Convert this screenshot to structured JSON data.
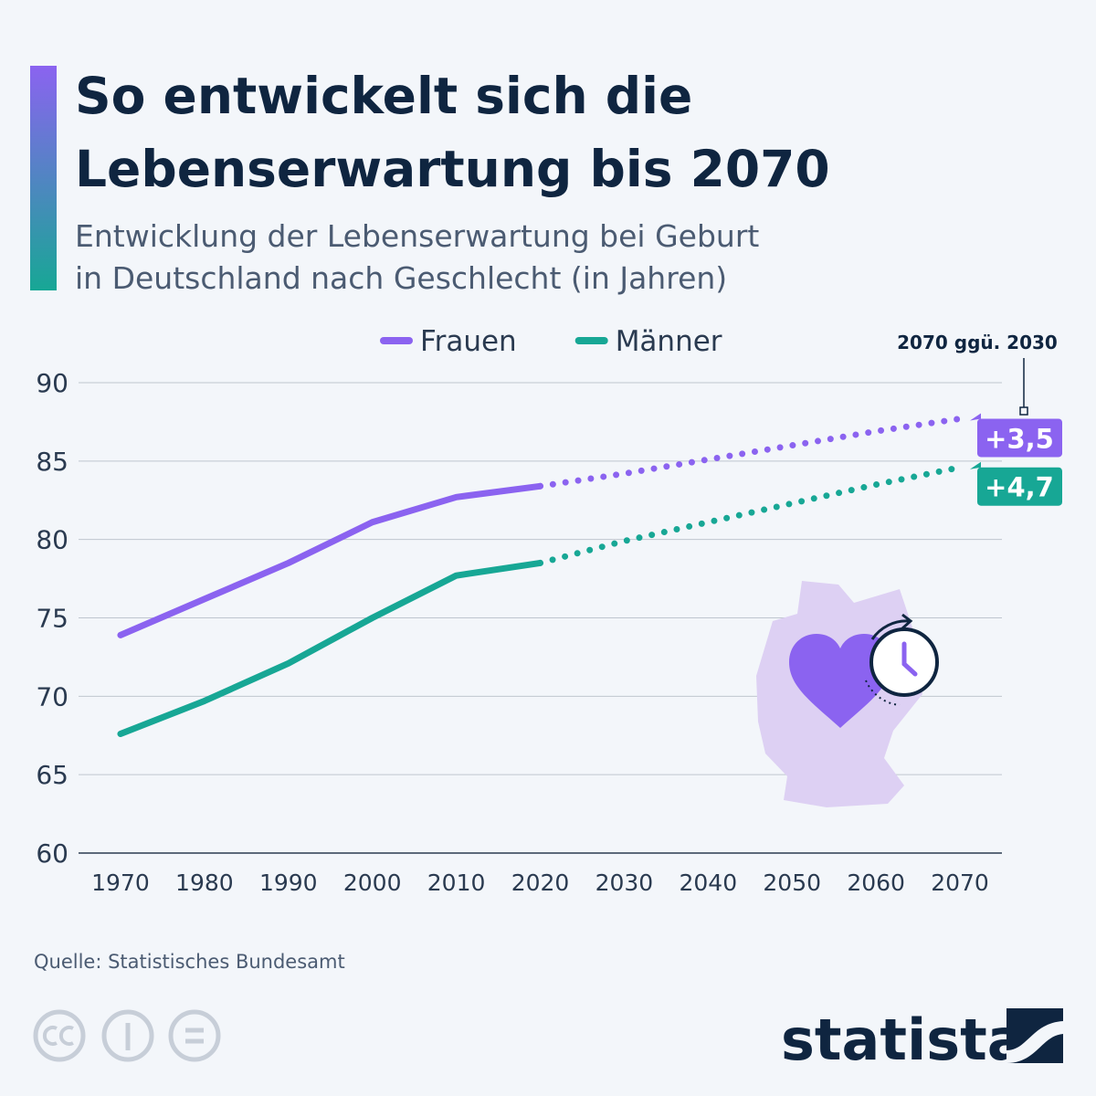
{
  "chart_data": {
    "type": "line",
    "title": [
      "So entwickelt sich die",
      "Lebenserwartung bis 2070"
    ],
    "subtitle": [
      "Entwicklung der Lebenserwartung bei Geburt",
      "in Deutschland nach Geschlecht (in Jahren)"
    ],
    "x": [
      1970,
      1980,
      1990,
      2000,
      2010,
      2020,
      2030,
      2040,
      2050,
      2060,
      2070
    ],
    "projection_start": 2020,
    "series": [
      {
        "name": "Frauen",
        "color": "#8b63f0",
        "values": [
          73.9,
          76.2,
          78.5,
          81.1,
          82.7,
          83.4,
          84.2,
          85.1,
          86.0,
          86.9,
          87.7
        ],
        "change": {
          "value": 3.5,
          "label": "+3,5"
        }
      },
      {
        "name": "Männer",
        "color": "#17a795",
        "values": [
          67.6,
          69.7,
          72.1,
          75.0,
          77.7,
          78.5,
          79.9,
          81.1,
          82.3,
          83.5,
          84.6
        ],
        "change": {
          "value": 4.7,
          "label": "+4,7"
        }
      }
    ],
    "change_title": "2070 ggü. 2030",
    "xlim": [
      1965,
      2075
    ],
    "xticks": [
      1970,
      1980,
      1990,
      2000,
      2010,
      2020,
      2030,
      2040,
      2050,
      2060,
      2070
    ],
    "ylim": [
      60,
      90
    ],
    "yticks": [
      60,
      65,
      70,
      75,
      80,
      85,
      90
    ],
    "grid": true,
    "source": "Quelle: Statistisches Bundesamt",
    "brand": "statista"
  }
}
